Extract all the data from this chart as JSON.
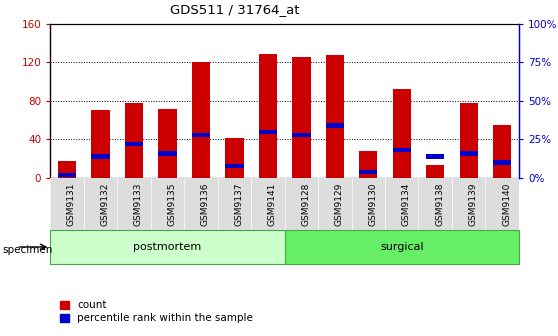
{
  "title": "GDS511 / 31764_at",
  "categories": [
    "GSM9131",
    "GSM9132",
    "GSM9133",
    "GSM9135",
    "GSM9136",
    "GSM9137",
    "GSM9141",
    "GSM9128",
    "GSM9129",
    "GSM9130",
    "GSM9134",
    "GSM9138",
    "GSM9139",
    "GSM9140"
  ],
  "red_values": [
    18,
    70,
    78,
    72,
    120,
    42,
    128,
    125,
    127,
    28,
    92,
    14,
    78,
    55
  ],
  "blue_percentiles": [
    2,
    14,
    22,
    16,
    28,
    8,
    30,
    28,
    34,
    4,
    18,
    14,
    16,
    10
  ],
  "groups": [
    {
      "label": "postmortem",
      "start": 0,
      "end": 6,
      "color": "#ccffcc"
    },
    {
      "label": "surgical",
      "start": 7,
      "end": 13,
      "color": "#66ee66"
    }
  ],
  "ylim_left": [
    0,
    160
  ],
  "ylim_right": [
    0,
    100
  ],
  "yticks_left": [
    0,
    40,
    80,
    120,
    160
  ],
  "ytick_labels_left": [
    "0",
    "40",
    "80",
    "120",
    "160"
  ],
  "yticks_right": [
    0,
    25,
    50,
    75,
    100
  ],
  "ytick_labels_right": [
    "0%",
    "25%",
    "50%",
    "75%",
    "100%"
  ],
  "left_tick_color": "#cc0000",
  "right_tick_color": "#0000cc",
  "bar_color": "#cc0000",
  "marker_color": "#0000cc",
  "legend_count_label": "count",
  "legend_percentile_label": "percentile rank within the sample",
  "specimen_label": "specimen",
  "xtick_bg_color": "#dddddd",
  "bar_width": 0.55
}
